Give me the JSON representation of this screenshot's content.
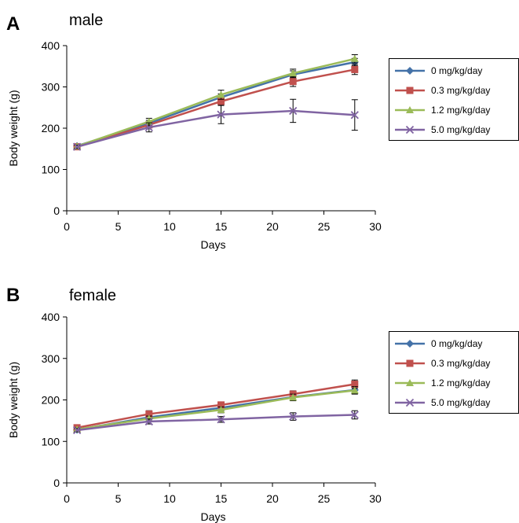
{
  "chart_data": [
    {
      "type": "line",
      "panel_label": "A",
      "title": "male",
      "xlabel": "Days",
      "ylabel": "Body weight (g)",
      "xlim": [
        0,
        30
      ],
      "ylim": [
        0,
        400
      ],
      "xticks": [
        0,
        5,
        10,
        15,
        20,
        25,
        30
      ],
      "yticks": [
        0,
        100,
        200,
        300,
        400
      ],
      "x": [
        1,
        8,
        15,
        22,
        28
      ],
      "legend_position": "right",
      "series": [
        {
          "name": "0 mg/kg/day",
          "color": "#4472A8",
          "marker": "diamond",
          "values": [
            157,
            212,
            275,
            330,
            360
          ],
          "errors": [
            4,
            7,
            8,
            9,
            9
          ]
        },
        {
          "name": "0.3 mg/kg/day",
          "color": "#C0504D",
          "marker": "square",
          "values": [
            155,
            208,
            265,
            313,
            342
          ],
          "errors": [
            4,
            7,
            9,
            12,
            12
          ]
        },
        {
          "name": "1.2 mg/kg/day",
          "color": "#9BBB59",
          "marker": "triangle",
          "values": [
            156,
            216,
            281,
            333,
            368
          ],
          "errors": [
            4,
            8,
            11,
            10,
            10
          ]
        },
        {
          "name": "5.0 mg/kg/day",
          "color": "#8064A2",
          "marker": "x",
          "values": [
            155,
            202,
            233,
            242,
            232
          ],
          "errors": [
            4,
            11,
            22,
            28,
            37
          ]
        }
      ]
    },
    {
      "type": "line",
      "panel_label": "B",
      "title": "female",
      "xlabel": "Days",
      "ylabel": "Body weight (g)",
      "xlim": [
        0,
        30
      ],
      "ylim": [
        0,
        400
      ],
      "xticks": [
        0,
        5,
        10,
        15,
        20,
        25,
        30
      ],
      "yticks": [
        0,
        100,
        200,
        300,
        400
      ],
      "x": [
        1,
        8,
        15,
        22,
        28
      ],
      "legend_position": "right",
      "series": [
        {
          "name": "0 mg/kg/day",
          "color": "#4472A8",
          "marker": "diamond",
          "values": [
            128,
            158,
            181,
            207,
            224
          ],
          "errors": [
            4,
            6,
            7,
            8,
            9
          ]
        },
        {
          "name": "0.3 mg/kg/day",
          "color": "#C0504D",
          "marker": "square",
          "values": [
            133,
            166,
            188,
            214,
            238
          ],
          "errors": [
            4,
            8,
            7,
            8,
            10
          ]
        },
        {
          "name": "1.2 mg/kg/day",
          "color": "#9BBB59",
          "marker": "triangle",
          "values": [
            129,
            155,
            176,
            206,
            223
          ],
          "errors": [
            4,
            6,
            7,
            8,
            9
          ]
        },
        {
          "name": "5.0 mg/kg/day",
          "color": "#8064A2",
          "marker": "x",
          "values": [
            127,
            148,
            153,
            160,
            164
          ],
          "errors": [
            4,
            6,
            7,
            9,
            10
          ]
        }
      ]
    }
  ]
}
